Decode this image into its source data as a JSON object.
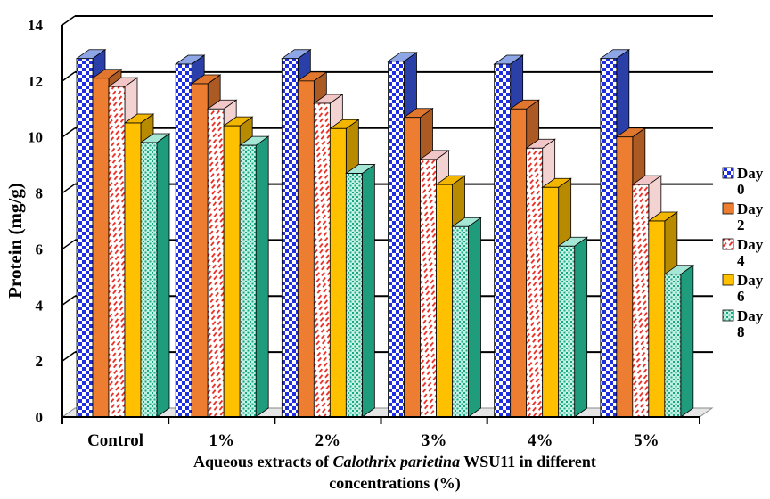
{
  "chart_data": {
    "type": "bar",
    "style": "3d-clustered",
    "categories": [
      "Control",
      "1%",
      "2%",
      "3%",
      "4%",
      "5%"
    ],
    "series": [
      {
        "name": "Day 0",
        "values": [
          12.8,
          12.6,
          12.8,
          12.7,
          12.6,
          12.8
        ],
        "color": "#4472C4",
        "pattern": "checker"
      },
      {
        "name": "Day 2",
        "values": [
          12.1,
          11.9,
          12.0,
          10.7,
          11.0,
          10.0
        ],
        "color": "#ED7D31",
        "pattern": "solid"
      },
      {
        "name": "Day 4",
        "values": [
          11.8,
          11.0,
          11.2,
          9.2,
          9.6,
          8.3
        ],
        "color": "#FF0000",
        "pattern": "dashes"
      },
      {
        "name": "Day 6",
        "values": [
          10.5,
          10.4,
          10.3,
          8.3,
          8.2,
          7.0
        ],
        "color": "#FFC000",
        "pattern": "solid"
      },
      {
        "name": "Day 8",
        "values": [
          9.8,
          9.7,
          8.7,
          6.8,
          6.1,
          5.1
        ],
        "color": "#2DBE9E",
        "pattern": "dots"
      }
    ],
    "ylabel": "Protein (mg/g)",
    "xlabel_parts": [
      {
        "text": "Aqueous extracts of ",
        "italic": false
      },
      {
        "text": "Calothrix parietina",
        "italic": true
      },
      {
        "text": " WSU11 in different",
        "italic": false
      }
    ],
    "xlabel_line2": "concentrations (%)",
    "ylim": [
      0,
      14
    ],
    "yticks": [
      "0",
      "2",
      "4",
      "6",
      "8",
      "10",
      "12",
      "14"
    ],
    "grid": true,
    "legend_position": "right"
  }
}
